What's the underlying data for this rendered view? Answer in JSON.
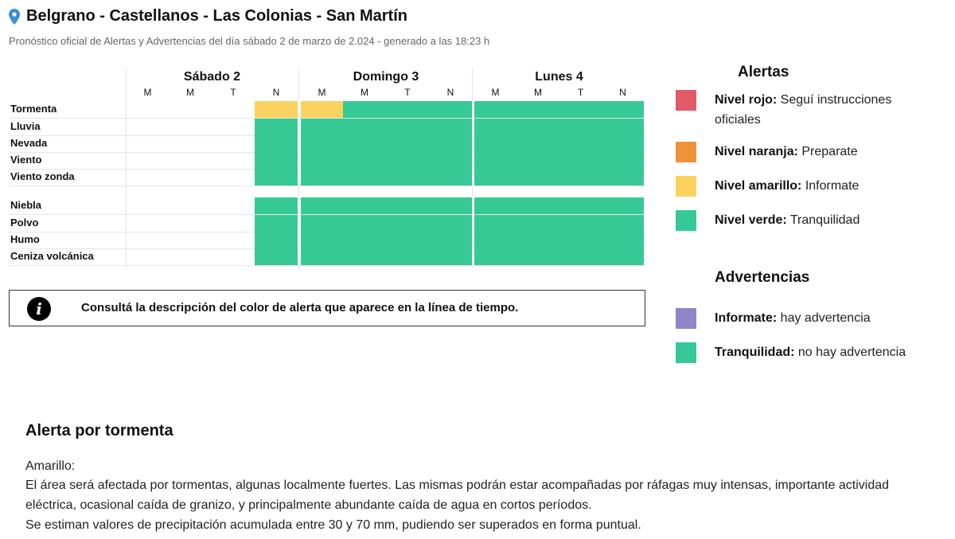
{
  "header": {
    "title": "Belgrano - Castellanos - Las Colonias - San Martín",
    "subtitle": "Pronóstico oficial de Alertas y Advertencias del día sábado 2 de marzo de 2.024 - generado a las 18:23 h"
  },
  "timeline": {
    "days": [
      {
        "label": "Sábado 2",
        "slots": [
          "M",
          "M",
          "T",
          "N"
        ]
      },
      {
        "label": "Domingo 3",
        "slots": [
          "M",
          "M",
          "T",
          "N"
        ]
      },
      {
        "label": "Lunes 4",
        "slots": [
          "M",
          "M",
          "T",
          "N"
        ]
      }
    ],
    "rows": [
      {
        "label": "Tormenta",
        "levels": [
          "none",
          "none",
          "none",
          "amarillo",
          "amarillo",
          "verde",
          "verde",
          "verde",
          "verde",
          "verde",
          "verde",
          "verde"
        ]
      },
      {
        "label": "Lluvia",
        "levels": [
          "none",
          "none",
          "none",
          "verde",
          "verde",
          "verde",
          "verde",
          "verde",
          "verde",
          "verde",
          "verde",
          "verde"
        ]
      },
      {
        "label": "Nevada",
        "levels": [
          "none",
          "none",
          "none",
          "verde",
          "verde",
          "verde",
          "verde",
          "verde",
          "verde",
          "verde",
          "verde",
          "verde"
        ]
      },
      {
        "label": "Viento",
        "levels": [
          "none",
          "none",
          "none",
          "verde",
          "verde",
          "verde",
          "verde",
          "verde",
          "verde",
          "verde",
          "verde",
          "verde"
        ]
      },
      {
        "label": "Viento zonda",
        "levels": [
          "none",
          "none",
          "none",
          "verde",
          "verde",
          "verde",
          "verde",
          "verde",
          "verde",
          "verde",
          "verde",
          "verde"
        ]
      },
      {
        "label": "Niebla",
        "levels": [
          "none",
          "none",
          "none",
          "verde",
          "verde",
          "verde",
          "verde",
          "verde",
          "verde",
          "verde",
          "verde",
          "verde"
        ]
      },
      {
        "label": "Polvo",
        "levels": [
          "none",
          "none",
          "none",
          "verde",
          "verde",
          "verde",
          "verde",
          "verde",
          "verde",
          "verde",
          "verde",
          "verde"
        ]
      },
      {
        "label": "Humo",
        "levels": [
          "none",
          "none",
          "none",
          "verde",
          "verde",
          "verde",
          "verde",
          "verde",
          "verde",
          "verde",
          "verde",
          "verde"
        ]
      },
      {
        "label": "Ceniza volcánica",
        "levels": [
          "none",
          "none",
          "none",
          "verde",
          "verde",
          "verde",
          "verde",
          "verde",
          "verde",
          "verde",
          "verde",
          "verde"
        ]
      }
    ]
  },
  "colors": {
    "rojo": "#e05a67",
    "naranja": "#f0923a",
    "amarillo": "#fbd25f",
    "verde": "#36c996",
    "violeta": "#8f86c9",
    "pin": "#3a8fd6"
  },
  "info": {
    "icon": "info-icon",
    "text": "Consultá la descripción del color de alerta que aparece en la línea de tiempo."
  },
  "legend": {
    "alertas_title": "Alertas",
    "alertas": [
      {
        "key": "rojo",
        "bold": "Nivel rojo:",
        "text": " Seguí instrucciones oficiales"
      },
      {
        "key": "naranja",
        "bold": "Nivel naranja:",
        "text": " Preparate"
      },
      {
        "key": "amarillo",
        "bold": "Nivel amarillo:",
        "text": " Informate"
      },
      {
        "key": "verde",
        "bold": "Nivel verde:",
        "text": " Tranquilidad"
      }
    ],
    "advertencias_title": "Advertencias",
    "advertencias": [
      {
        "key": "violeta",
        "bold": "Informate:",
        "text": " hay advertencia"
      },
      {
        "key": "verde",
        "bold": "Tranquilidad:",
        "text": " no hay advertencia"
      }
    ]
  },
  "description": {
    "title": "Alerta por tormenta",
    "lines": [
      "Amarillo:",
      "El área será afectada por tormentas, algunas localmente fuertes. Las mismas podrán estar acompañadas por ráfagas muy intensas, importante actividad",
      "eléctrica, ocasional caída de granizo, y principalmente abundante caída de agua en cortos períodos.",
      "Se estiman valores de precipitación acumulada entre 30 y 70 mm, pudiendo ser superados en forma puntual."
    ]
  }
}
